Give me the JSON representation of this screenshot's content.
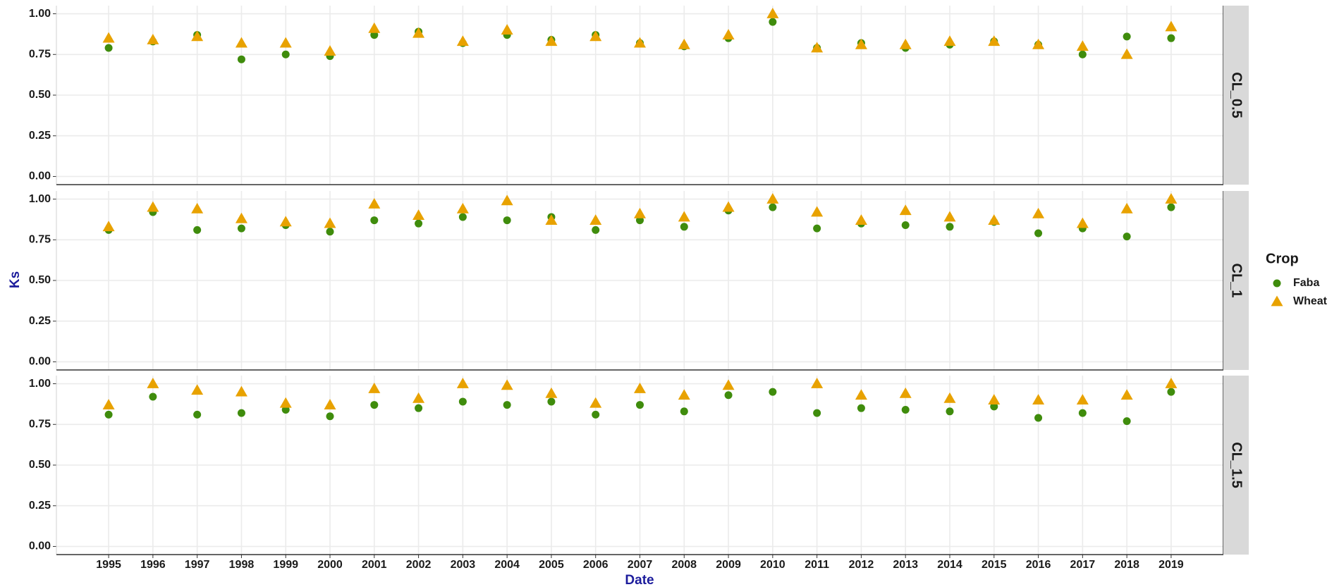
{
  "chart_data": {
    "type": "scatter",
    "x_label": "Date",
    "y_label": "Ks",
    "legend_title": "Crop",
    "legend": "right",
    "grid": true,
    "categories": [
      "1995",
      "1996",
      "1997",
      "1998",
      "1999",
      "2000",
      "2001",
      "2002",
      "2003",
      "2004",
      "2005",
      "2006",
      "2007",
      "2008",
      "2009",
      "2010",
      "2011",
      "2012",
      "2013",
      "2014",
      "2015",
      "2016",
      "2017",
      "2018",
      "2019"
    ],
    "ylim": [
      -0.05,
      1.05
    ],
    "yticks": [
      {
        "value": 0,
        "label": "0.00"
      },
      {
        "value": 0.25,
        "label": "0.25"
      },
      {
        "value": 0.5,
        "label": "0.50"
      },
      {
        "value": 0.75,
        "label": "0.75"
      },
      {
        "value": 1,
        "label": "1.00"
      }
    ],
    "facets": [
      {
        "label": "CL_0.5",
        "series": [
          {
            "name": "Faba",
            "color": "#3f8c0c",
            "marker": "circle",
            "values": [
              0.79,
              0.83,
              0.87,
              0.72,
              0.75,
              0.74,
              0.87,
              0.89,
              0.82,
              0.87,
              0.84,
              0.87,
              0.82,
              0.8,
              0.85,
              0.95,
              0.79,
              0.82,
              0.79,
              0.81,
              0.83,
              0.81,
              0.75,
              0.86,
              0.85
            ]
          },
          {
            "name": "Wheat",
            "color": "#e8a200",
            "marker": "triangle",
            "values": [
              0.85,
              0.84,
              0.86,
              0.82,
              0.82,
              0.77,
              0.91,
              0.88,
              0.83,
              0.9,
              0.83,
              0.86,
              0.82,
              0.81,
              0.87,
              1.0,
              0.79,
              0.81,
              0.81,
              0.83,
              0.83,
              0.81,
              0.8,
              0.75,
              0.92
            ]
          }
        ]
      },
      {
        "label": "CL_1",
        "series": [
          {
            "name": "Faba",
            "color": "#3f8c0c",
            "marker": "circle",
            "values": [
              0.81,
              0.92,
              0.81,
              0.82,
              0.84,
              0.8,
              0.87,
              0.85,
              0.89,
              0.87,
              0.89,
              0.81,
              0.87,
              0.83,
              0.93,
              0.95,
              0.82,
              0.85,
              0.84,
              0.83,
              0.86,
              0.79,
              0.82,
              0.77,
              0.95
            ]
          },
          {
            "name": "Wheat",
            "color": "#e8a200",
            "marker": "triangle",
            "values": [
              0.83,
              0.95,
              0.94,
              0.88,
              0.86,
              0.85,
              0.97,
              0.9,
              0.94,
              0.99,
              0.87,
              0.87,
              0.91,
              0.89,
              0.95,
              1.0,
              0.92,
              0.87,
              0.93,
              0.89,
              0.87,
              0.91,
              0.85,
              0.94,
              1.0
            ]
          }
        ]
      },
      {
        "label": "CL_1.5",
        "series": [
          {
            "name": "Faba",
            "color": "#3f8c0c",
            "marker": "circle",
            "values": [
              0.81,
              0.92,
              0.81,
              0.82,
              0.84,
              0.8,
              0.87,
              0.85,
              0.89,
              0.87,
              0.89,
              0.81,
              0.87,
              0.83,
              0.93,
              0.95,
              0.82,
              0.85,
              0.84,
              0.83,
              0.86,
              0.79,
              0.82,
              0.77,
              0.95
            ]
          },
          {
            "name": "Wheat",
            "color": "#e8a200",
            "marker": "triangle",
            "values": [
              0.87,
              1.0,
              0.96,
              0.95,
              0.88,
              0.87,
              0.97,
              0.91,
              1.0,
              0.99,
              0.94,
              0.88,
              0.97,
              0.93,
              0.99,
              null,
              1.0,
              0.93,
              0.94,
              0.91,
              0.9,
              0.9,
              0.9,
              0.93,
              1.0
            ]
          }
        ]
      }
    ]
  }
}
